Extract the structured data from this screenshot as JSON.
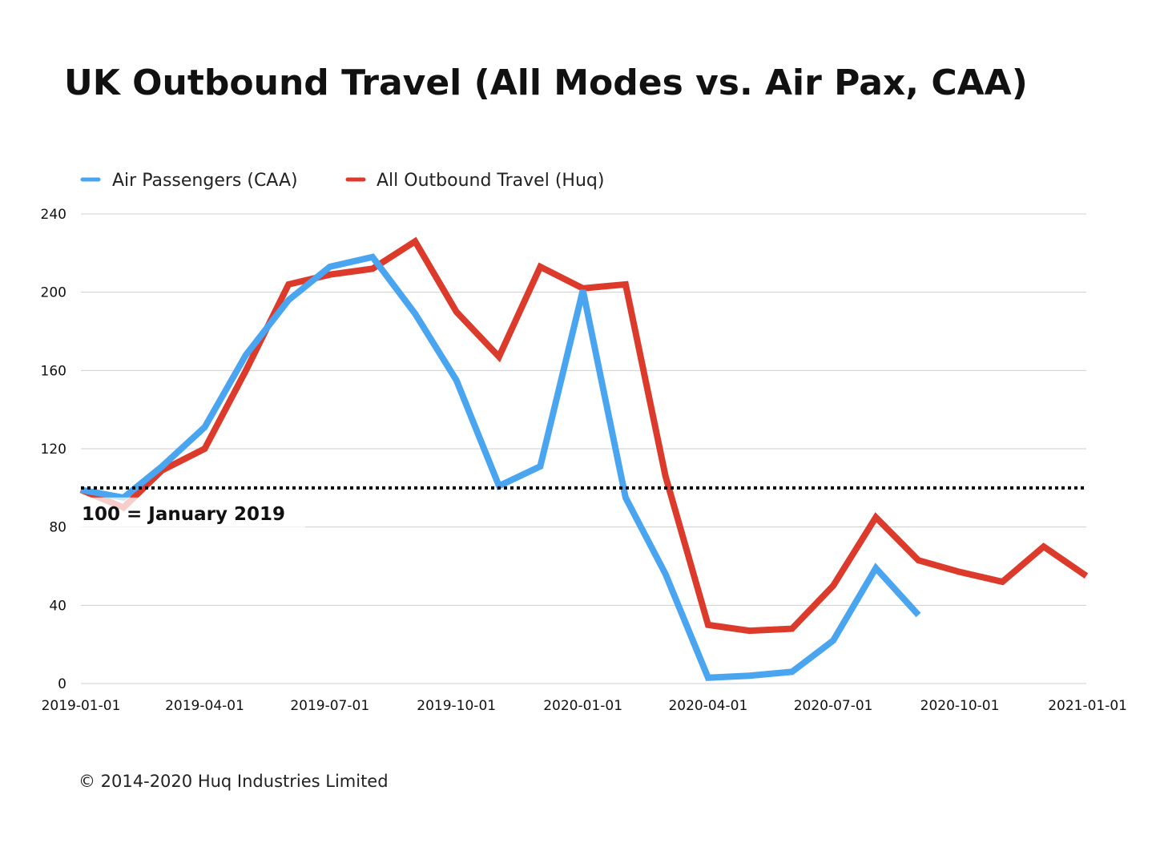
{
  "colors": {
    "air": "#4aa5f0",
    "huq": "#dc3a2b",
    "grid": "#cfcfcf",
    "reference": "#000000"
  },
  "footer": {
    "copyright": "© 2014-2020 Huq Industries Limited"
  },
  "chart_data": {
    "type": "line",
    "title": "UK Outbound Travel (All Modes vs. Air Pax, CAA)",
    "xlabel": "",
    "ylabel": "",
    "x_type": "date",
    "xlim": [
      "2019-01-01",
      "2021-01-01"
    ],
    "ylim": [
      0,
      240
    ],
    "yticks": [
      0,
      40,
      80,
      120,
      160,
      200,
      240
    ],
    "xticks": [
      "2019-01-01",
      "2019-04-01",
      "2019-07-01",
      "2019-10-01",
      "2020-01-01",
      "2020-04-01",
      "2020-07-01",
      "2020-10-01",
      "2021-01-01"
    ],
    "grid": true,
    "legend_position": "top-left",
    "reference_line": {
      "y": 100,
      "label": "100 = January 2019"
    },
    "series": [
      {
        "name": "Air Passengers (CAA)",
        "color": "#4aa5f0",
        "points": [
          [
            "2019-01-01",
            99
          ],
          [
            "2019-02-01",
            95
          ],
          [
            "2019-03-01",
            111
          ],
          [
            "2019-04-01",
            131
          ],
          [
            "2019-05-01",
            168
          ],
          [
            "2019-06-01",
            196
          ],
          [
            "2019-07-01",
            213
          ],
          [
            "2019-08-01",
            218
          ],
          [
            "2019-09-01",
            189
          ],
          [
            "2019-10-01",
            155
          ],
          [
            "2019-11-01",
            101
          ],
          [
            "2019-12-01",
            111
          ],
          [
            "2020-01-01",
            201
          ],
          [
            "2020-02-01",
            95
          ],
          [
            "2020-03-01",
            56
          ],
          [
            "2020-04-01",
            3
          ],
          [
            "2020-05-01",
            4
          ],
          [
            "2020-06-01",
            6
          ],
          [
            "2020-07-01",
            22
          ],
          [
            "2020-08-01",
            59
          ],
          [
            "2020-09-01",
            35
          ]
        ]
      },
      {
        "name": "All Outbound Travel (Huq)",
        "color": "#dc3a2b",
        "points": [
          [
            "2019-01-01",
            99
          ],
          [
            "2019-02-01",
            90
          ],
          [
            "2019-03-01",
            109
          ],
          [
            "2019-04-01",
            120
          ],
          [
            "2019-05-01",
            160
          ],
          [
            "2019-06-01",
            204
          ],
          [
            "2019-07-01",
            209
          ],
          [
            "2019-08-01",
            212
          ],
          [
            "2019-09-01",
            226
          ],
          [
            "2019-10-01",
            190
          ],
          [
            "2019-11-01",
            167
          ],
          [
            "2019-12-01",
            213
          ],
          [
            "2020-01-01",
            202
          ],
          [
            "2020-02-01",
            204
          ],
          [
            "2020-03-01",
            106
          ],
          [
            "2020-04-01",
            30
          ],
          [
            "2020-05-01",
            27
          ],
          [
            "2020-06-01",
            28
          ],
          [
            "2020-07-01",
            50
          ],
          [
            "2020-08-01",
            85
          ],
          [
            "2020-09-01",
            63
          ],
          [
            "2020-10-01",
            57
          ],
          [
            "2020-11-01",
            52
          ],
          [
            "2020-12-01",
            70
          ],
          [
            "2021-01-01",
            55
          ]
        ]
      }
    ]
  }
}
